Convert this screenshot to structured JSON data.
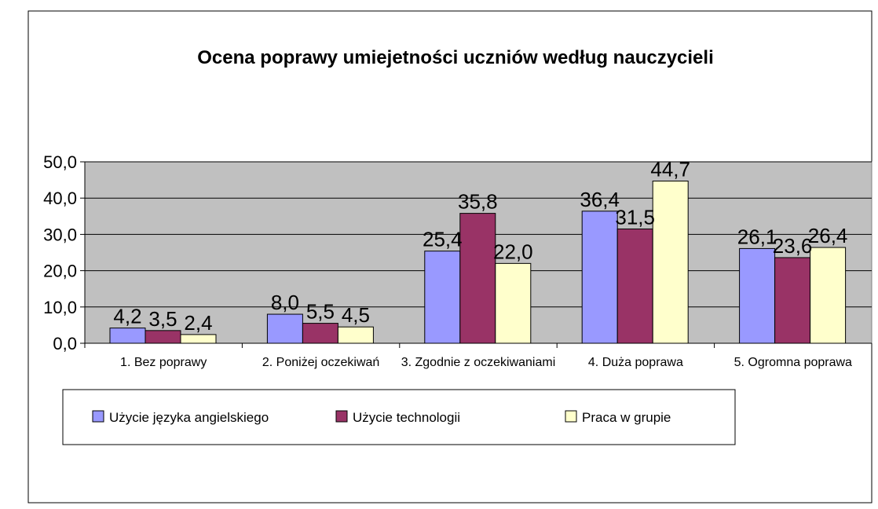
{
  "chart_data": {
    "type": "bar",
    "title": "Ocena poprawy umiejetności uczniów według nauczycieli",
    "categories": [
      "1. Bez poprawy",
      "2. Poniżej oczekiwań",
      "3. Zgodnie z oczekiwaniami",
      "4. Duża poprawa",
      "5. Ogromna poprawa"
    ],
    "series": [
      {
        "name": "Użycie języka angielskiego",
        "color": "#9999ff",
        "values": [
          4.2,
          8.0,
          25.4,
          36.4,
          26.1
        ],
        "value_labels": [
          "4,2",
          "8,0",
          "25,4",
          "36,4",
          "26,1"
        ]
      },
      {
        "name": "Użycie technologii",
        "color": "#993366",
        "values": [
          3.5,
          5.5,
          35.8,
          31.5,
          23.6
        ],
        "value_labels": [
          "3,5",
          "5,5",
          "35,8",
          "31,5",
          "23,6"
        ]
      },
      {
        "name": "Praca  w grupie",
        "color": "#ffffcc",
        "values": [
          2.4,
          4.5,
          22.0,
          44.7,
          26.4
        ],
        "value_labels": [
          "2,4",
          "4,5",
          "22,0",
          "44,7",
          "26,4"
        ]
      }
    ],
    "ylim": [
      0,
      50
    ],
    "yticks": [
      {
        "value": 0,
        "label": "0,0"
      },
      {
        "value": 10,
        "label": "10,0"
      },
      {
        "value": 20,
        "label": "20,0"
      },
      {
        "value": 30,
        "label": "30,0"
      },
      {
        "value": 40,
        "label": "40,0"
      },
      {
        "value": 50,
        "label": "50,0"
      }
    ],
    "grid": true,
    "legend": "bottom"
  }
}
